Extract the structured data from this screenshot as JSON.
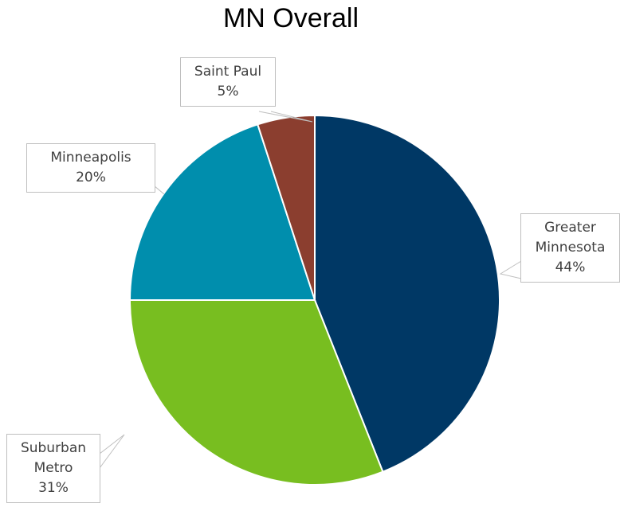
{
  "chart_data": {
    "type": "pie",
    "title": "MN Overall",
    "categories": [
      "Greater Minnesota",
      "Suburban Metro",
      "Minneapolis",
      "Saint Paul"
    ],
    "values": [
      44,
      31,
      20,
      5
    ],
    "value_labels": [
      "44%",
      "31%",
      "20%",
      "5%"
    ],
    "colors": [
      "#003865",
      "#78be20",
      "#008ead",
      "#8b3e2f"
    ]
  }
}
